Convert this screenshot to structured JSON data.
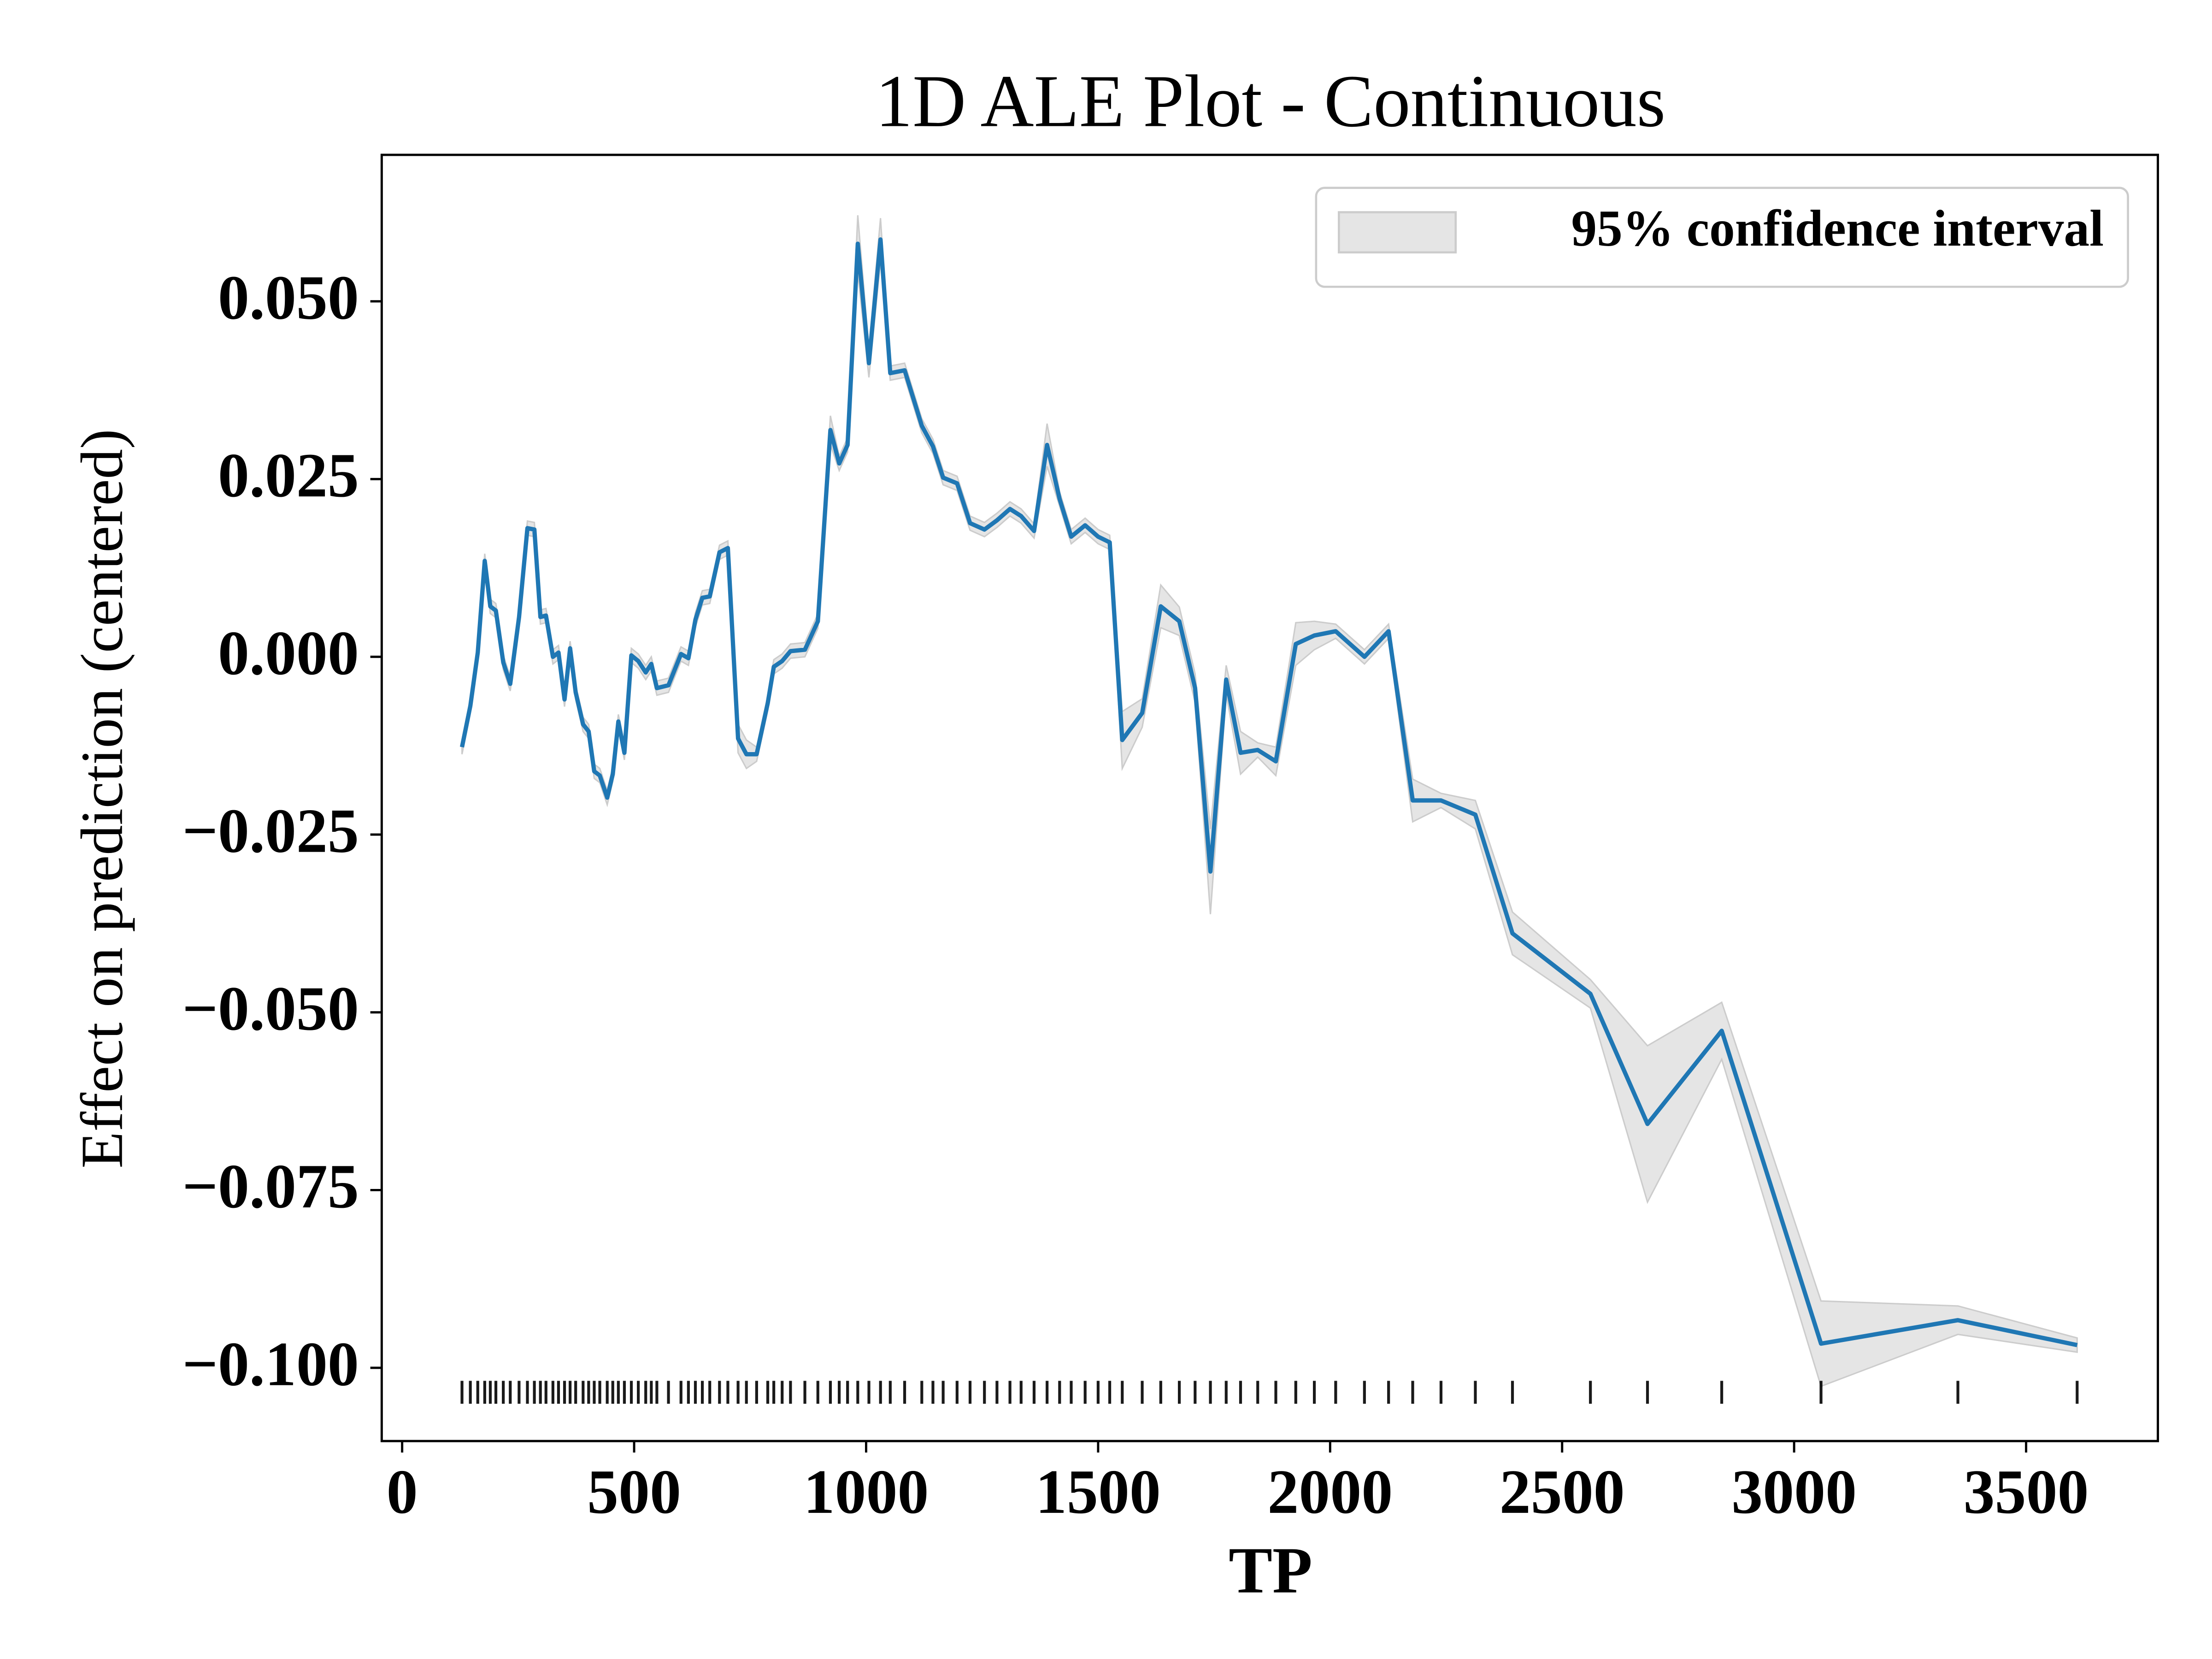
{
  "chart_data": {
    "type": "line",
    "title": "1D ALE Plot - Continuous",
    "x_label": "TP",
    "y_label": "Effect on prediction (centered)",
    "xlim": [
      -44,
      3784
    ],
    "ylim": [
      -0.1103,
      0.0706
    ],
    "xticks": [
      0,
      500,
      1000,
      1500,
      2000,
      2500,
      3000,
      3500
    ],
    "yticks": [
      {
        "value": -0.1,
        "label": "−0.100"
      },
      {
        "value": -0.075,
        "label": "−0.075"
      },
      {
        "value": -0.05,
        "label": "−0.050"
      },
      {
        "value": -0.025,
        "label": "−0.025"
      },
      {
        "value": 0,
        "label": "0.000"
      },
      {
        "value": 0.025,
        "label": "0.025"
      },
      {
        "value": 0.05,
        "label": "0.050"
      }
    ],
    "grid": false,
    "legend": "upper right",
    "x": [
      129,
      147,
      163,
      178,
      190,
      202,
      218,
      233,
      252,
      270,
      285,
      298,
      310,
      325,
      337,
      350,
      362,
      374,
      390,
      402,
      414,
      426,
      442,
      454,
      466,
      479,
      494,
      509,
      525,
      537,
      549,
      574,
      601,
      617,
      632,
      647,
      663,
      684,
      702,
      724,
      742,
      764,
      788,
      801,
      819,
      837,
      868,
      896,
      923,
      942,
      960,
      982,
      1006,
      1031,
      1052,
      1083,
      1120,
      1144,
      1166,
      1196,
      1224,
      1255,
      1282,
      1310,
      1334,
      1362,
      1390,
      1417,
      1442,
      1472,
      1500,
      1525,
      1552,
      1595,
      1635,
      1675,
      1709,
      1742,
      1776,
      1807,
      1844,
      1883,
      1926,
      1966,
      2012,
      2074,
      2126,
      2178,
      2239,
      2313,
      2393,
      2561,
      2684,
      2844,
      3058,
      3353,
      3610
    ],
    "series": [
      {
        "color": "#1f77b4",
        "band_name": "95% confidence interval",
        "band_color": "#cccccc",
        "values": [
          -0.0127,
          -0.0069,
          0.0006,
          0.0135,
          0.0071,
          0.0065,
          -0.0008,
          -0.0038,
          0.0056,
          0.0181,
          0.0179,
          0.0056,
          0.0058,
          0.0,
          0.0006,
          -0.006,
          0.0012,
          -0.005,
          -0.0095,
          -0.0105,
          -0.0161,
          -0.0167,
          -0.0198,
          -0.0165,
          -0.0091,
          -0.0135,
          0.0002,
          -0.0006,
          -0.0022,
          -0.001,
          -0.0044,
          -0.004,
          0.0004,
          -0.0002,
          0.0052,
          0.0083,
          0.0085,
          0.0147,
          0.0153,
          -0.0115,
          -0.0137,
          -0.0137,
          -0.0065,
          -0.0014,
          -0.0006,
          0.0008,
          0.001,
          0.005,
          0.0319,
          0.0272,
          0.0298,
          0.0581,
          0.0413,
          0.0587,
          0.0399,
          0.0403,
          0.0325,
          0.0296,
          0.0252,
          0.0244,
          0.0188,
          0.0179,
          0.0192,
          0.0208,
          0.0198,
          0.0177,
          0.0298,
          0.0222,
          0.0169,
          0.0185,
          0.0169,
          0.0161,
          -0.0117,
          -0.0079,
          0.0071,
          0.005,
          -0.0044,
          -0.0302,
          -0.0032,
          -0.0135,
          -0.0131,
          -0.0147,
          0.0018,
          0.003,
          0.0036,
          0.0,
          0.0036,
          -0.0202,
          -0.0202,
          -0.0222,
          -0.0389,
          -0.0474,
          -0.0657,
          -0.0526,
          -0.0966,
          -0.0933,
          -0.0968
        ],
        "errors": [
          0.001,
          0.001,
          0.001,
          0.001,
          0.001,
          0.001,
          0.001,
          0.001,
          0.001,
          0.001,
          0.001,
          0.001,
          0.001,
          0.001,
          0.001,
          0.001,
          0.001,
          0.001,
          0.001,
          0.001,
          0.001,
          0.001,
          0.001,
          0.001,
          0.001,
          0.001,
          0.001,
          0.001,
          0.001,
          0.001,
          0.001,
          0.001,
          0.001,
          0.001,
          0.001,
          0.001,
          0.001,
          0.001,
          0.001,
          0.002,
          0.002,
          0.001,
          0.001,
          0.001,
          0.001,
          0.001,
          0.001,
          0.001,
          0.002,
          0.001,
          0.001,
          0.004,
          0.002,
          0.003,
          0.001,
          0.001,
          0.001,
          0.001,
          0.001,
          0.001,
          0.001,
          0.001,
          0.001,
          0.001,
          0.001,
          0.001,
          0.003,
          0.001,
          0.001,
          0.001,
          0.001,
          0.001,
          0.004,
          0.002,
          0.003,
          0.002,
          0.002,
          0.006,
          0.002,
          0.003,
          0.001,
          0.002,
          0.003,
          0.002,
          0.001,
          0.001,
          0.001,
          0.003,
          0.001,
          0.002,
          0.003,
          0.002,
          0.011,
          0.004,
          0.006,
          0.002,
          0.001
        ]
      }
    ]
  }
}
